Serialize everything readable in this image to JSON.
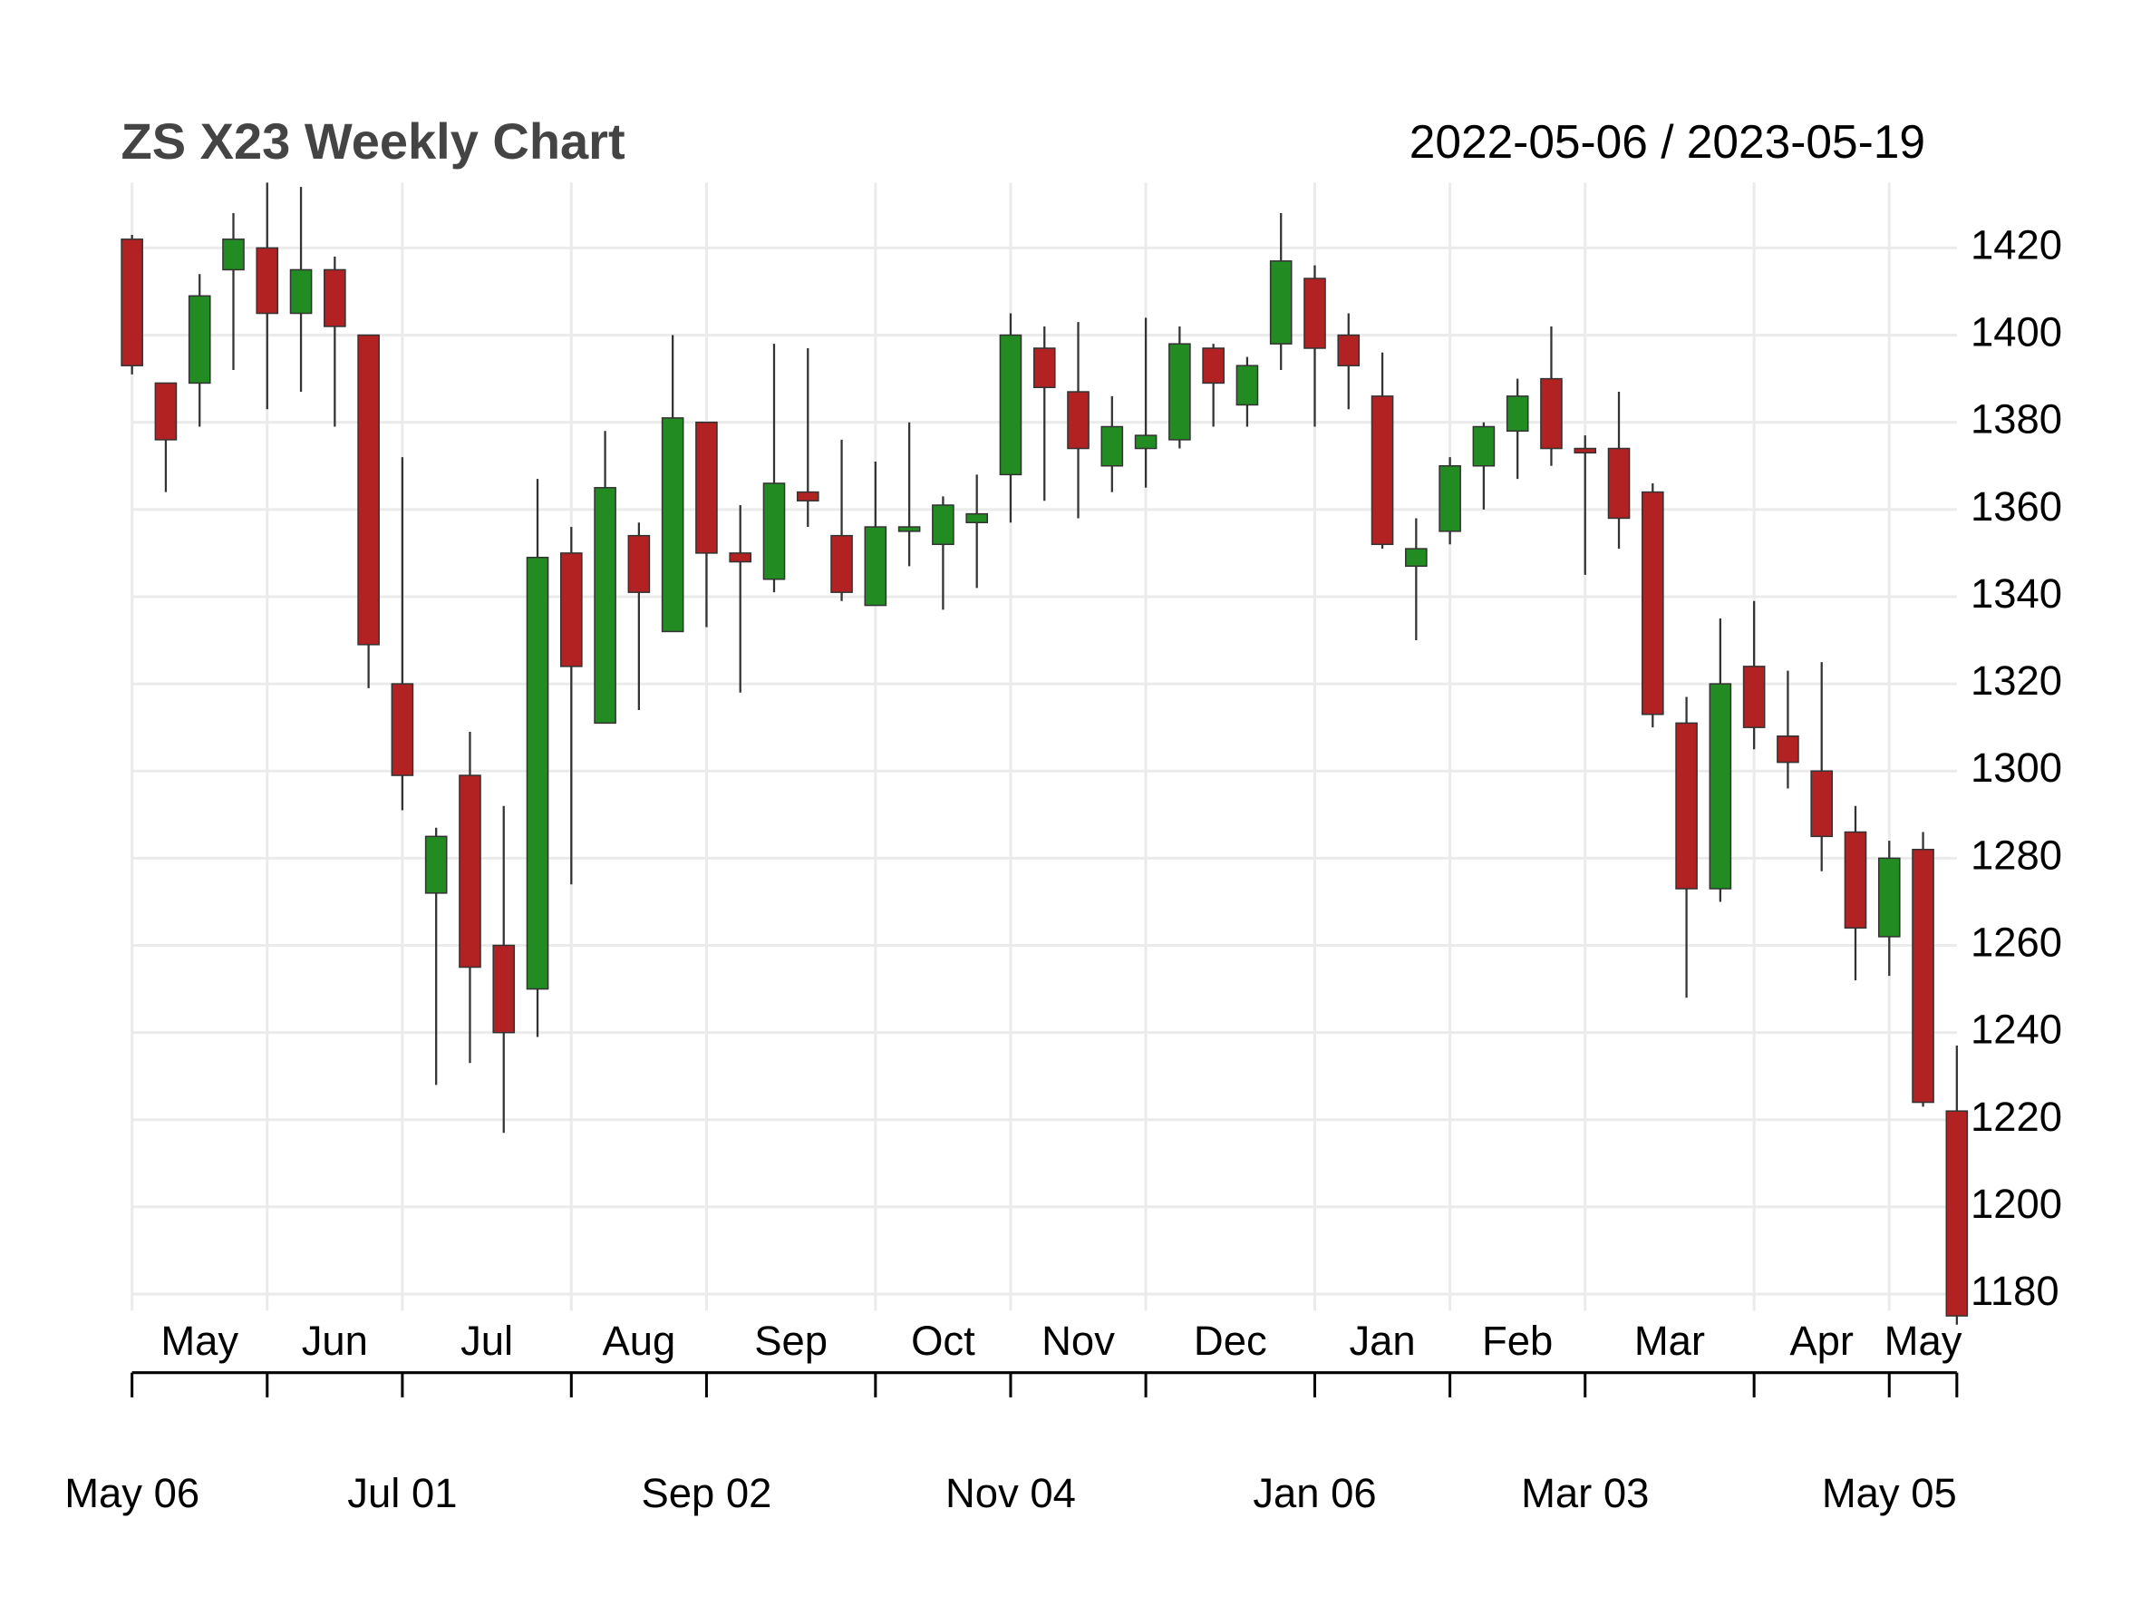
{
  "chart_data": {
    "type": "candlestick",
    "title": "ZS X23 Weekly Chart",
    "date_range": "2022-05-06 / 2023-05-19",
    "x": [
      "2022-05-06",
      "2022-05-13",
      "2022-05-20",
      "2022-05-27",
      "2022-06-03",
      "2022-06-10",
      "2022-06-17",
      "2022-06-24",
      "2022-07-01",
      "2022-07-08",
      "2022-07-15",
      "2022-07-22",
      "2022-07-29",
      "2022-08-05",
      "2022-08-12",
      "2022-08-19",
      "2022-08-26",
      "2022-09-02",
      "2022-09-09",
      "2022-09-16",
      "2022-09-23",
      "2022-09-30",
      "2022-10-07",
      "2022-10-14",
      "2022-10-21",
      "2022-10-28",
      "2022-11-04",
      "2022-11-11",
      "2022-11-18",
      "2022-11-25",
      "2022-12-02",
      "2022-12-09",
      "2022-12-16",
      "2022-12-23",
      "2022-12-30",
      "2023-01-06",
      "2023-01-13",
      "2023-01-20",
      "2023-01-27",
      "2023-02-03",
      "2023-02-10",
      "2023-02-17",
      "2023-02-24",
      "2023-03-03",
      "2023-03-10",
      "2023-03-17",
      "2023-03-24",
      "2023-03-31",
      "2023-04-07",
      "2023-04-14",
      "2023-04-21",
      "2023-04-28",
      "2023-05-05",
      "2023-05-12",
      "2023-05-19"
    ],
    "open": [
      1422,
      1389,
      1389,
      1415,
      1420,
      1405,
      1415,
      1400,
      1320,
      1272,
      1299,
      1260,
      1250,
      1350,
      1311,
      1354,
      1332,
      1380,
      1350,
      1344,
      1364,
      1354,
      1338,
      1355,
      1352,
      1357,
      1368,
      1397,
      1387,
      1370,
      1374,
      1376,
      1397,
      1384,
      1398,
      1413,
      1400,
      1386,
      1347,
      1355,
      1370,
      1378,
      1390,
      1374,
      1374,
      1364,
      1311,
      1273,
      1324,
      1308,
      1300,
      1286,
      1262,
      1282,
      1222
    ],
    "high": [
      1423,
      1389,
      1414,
      1428,
      1435,
      1434,
      1418,
      1400,
      1372,
      1287,
      1309,
      1292,
      1367,
      1356,
      1378,
      1357,
      1400,
      1380,
      1361,
      1398,
      1397,
      1376,
      1371,
      1380,
      1363,
      1368,
      1405,
      1402,
      1403,
      1386,
      1404,
      1402,
      1398,
      1395,
      1428,
      1416,
      1405,
      1396,
      1358,
      1372,
      1380,
      1390,
      1402,
      1377,
      1387,
      1366,
      1317,
      1335,
      1339,
      1323,
      1325,
      1292,
      1284,
      1286,
      1237
    ],
    "low": [
      1391,
      1364,
      1379,
      1392,
      1383,
      1387,
      1379,
      1319,
      1291,
      1228,
      1233,
      1217,
      1239,
      1274,
      1311,
      1314,
      1332,
      1333,
      1318,
      1341,
      1356,
      1339,
      1338,
      1347,
      1337,
      1342,
      1357,
      1362,
      1358,
      1364,
      1365,
      1374,
      1379,
      1379,
      1392,
      1379,
      1383,
      1351,
      1330,
      1352,
      1360,
      1367,
      1370,
      1345,
      1351,
      1310,
      1248,
      1270,
      1305,
      1296,
      1277,
      1252,
      1253,
      1223,
      1173
    ],
    "close": [
      1393,
      1376,
      1409,
      1422,
      1405,
      1415,
      1402,
      1329,
      1299,
      1285,
      1255,
      1240,
      1349,
      1324,
      1365,
      1341,
      1381,
      1350,
      1348,
      1366,
      1362,
      1341,
      1356,
      1356,
      1361,
      1359,
      1400,
      1388,
      1374,
      1379,
      1377,
      1398,
      1389,
      1393,
      1417,
      1397,
      1393,
      1352,
      1351,
      1370,
      1379,
      1386,
      1374,
      1373,
      1358,
      1313,
      1273,
      1320,
      1310,
      1302,
      1285,
      1264,
      1280,
      1224,
      1175
    ],
    "up_color": "#228b22",
    "down_color": "#b22222",
    "ylim": [
      1173,
      1435
    ],
    "yticks": [
      1180,
      1200,
      1220,
      1240,
      1260,
      1280,
      1300,
      1320,
      1340,
      1360,
      1380,
      1400,
      1420
    ],
    "grid": true,
    "xticks": [
      {
        "value": "2022-05-06",
        "label": "May"
      },
      {
        "value": "2022-06-03",
        "label": "Jun"
      },
      {
        "value": "2022-07-01",
        "label": "Jul"
      },
      {
        "value": "2022-08-05",
        "label": "Aug"
      },
      {
        "value": "2022-09-02",
        "label": "Sep"
      },
      {
        "value": "2022-10-07",
        "label": "Oct"
      },
      {
        "value": "2022-11-04",
        "label": "Nov"
      },
      {
        "value": "2022-12-02",
        "label": "Dec"
      },
      {
        "value": "2023-01-06",
        "label": "Jan"
      },
      {
        "value": "2023-02-03",
        "label": "Feb"
      },
      {
        "value": "2023-03-03",
        "label": "Mar"
      },
      {
        "value": "2023-04-07",
        "label": "Apr"
      },
      {
        "value": "2023-05-05",
        "label": "May"
      }
    ],
    "major_xticks": [
      {
        "value": "2022-05-06",
        "label": "May 06"
      },
      {
        "value": "2022-07-01",
        "label": "Jul 01"
      },
      {
        "value": "2022-09-02",
        "label": "Sep 02"
      },
      {
        "value": "2022-11-04",
        "label": "Nov 04"
      },
      {
        "value": "2023-01-06",
        "label": "Jan 06"
      },
      {
        "value": "2023-03-03",
        "label": "Mar 03"
      },
      {
        "value": "2023-05-05",
        "label": "May 05"
      }
    ]
  }
}
